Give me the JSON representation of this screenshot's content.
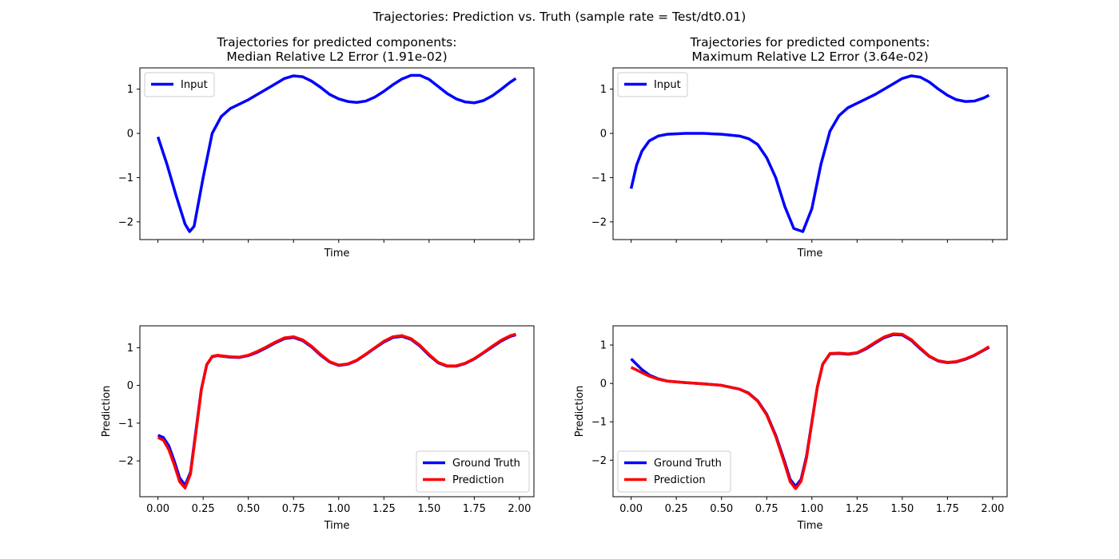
{
  "figure": {
    "suptitle": "Trajectories: Prediction vs. Truth (sample rate = Test/dt0.01)"
  },
  "colors": {
    "input": "#0000ff",
    "ground_truth": "#0000ff",
    "prediction": "#ff0000",
    "axes": "#000000"
  },
  "chart_data": [
    {
      "name": "top-left",
      "type": "line",
      "title_line1": "Trajectories for predicted components:",
      "title_line2": "Median Relative L2 Error (1.91e-02)",
      "xlabel": "Time",
      "ylabel": "",
      "xlim": [
        -0.1,
        2.08
      ],
      "ylim": [
        -2.4,
        1.48
      ],
      "xticks": [
        0,
        0.25,
        0.5,
        0.75,
        1.0,
        1.25,
        1.5,
        1.75,
        2.0
      ],
      "xtick_labels_shown": false,
      "yticks": [
        -2,
        -1,
        0,
        1
      ],
      "ytick_labels": [
        "−2",
        "−1",
        "0",
        "1"
      ],
      "legend": {
        "location": "upper-left",
        "entries": [
          "Input"
        ]
      },
      "series": [
        {
          "name": "Input",
          "color": "#0000ff",
          "x": [
            0,
            0.05,
            0.1,
            0.15,
            0.175,
            0.2,
            0.25,
            0.3,
            0.35,
            0.4,
            0.45,
            0.5,
            0.55,
            0.6,
            0.65,
            0.7,
            0.75,
            0.8,
            0.85,
            0.9,
            0.95,
            1.0,
            1.05,
            1.1,
            1.15,
            1.2,
            1.25,
            1.3,
            1.35,
            1.4,
            1.45,
            1.5,
            1.55,
            1.6,
            1.65,
            1.7,
            1.75,
            1.8,
            1.85,
            1.9,
            1.95,
            1.98
          ],
          "y": [
            -0.08,
            -0.7,
            -1.4,
            -2.05,
            -2.22,
            -2.1,
            -1.0,
            0.0,
            0.38,
            0.56,
            0.66,
            0.76,
            0.88,
            1.0,
            1.12,
            1.24,
            1.3,
            1.28,
            1.18,
            1.04,
            0.88,
            0.78,
            0.72,
            0.7,
            0.73,
            0.82,
            0.95,
            1.1,
            1.23,
            1.31,
            1.31,
            1.22,
            1.06,
            0.9,
            0.78,
            0.71,
            0.69,
            0.74,
            0.85,
            1.0,
            1.16,
            1.24
          ]
        }
      ]
    },
    {
      "name": "top-right",
      "type": "line",
      "title_line1": "Trajectories for predicted components:",
      "title_line2": "Maximum Relative L2 Error (3.64e-02)",
      "xlabel": "Time",
      "ylabel": "",
      "xlim": [
        -0.1,
        2.08
      ],
      "ylim": [
        -2.4,
        1.48
      ],
      "xticks": [
        0,
        0.25,
        0.5,
        0.75,
        1.0,
        1.25,
        1.5,
        1.75,
        2.0
      ],
      "xtick_labels_shown": false,
      "yticks": [
        -2,
        -1,
        0,
        1
      ],
      "ytick_labels": [
        "−2",
        "−1",
        "0",
        "1"
      ],
      "legend": {
        "location": "upper-left",
        "entries": [
          "Input"
        ]
      },
      "series": [
        {
          "name": "Input",
          "color": "#0000ff",
          "x": [
            0,
            0.03,
            0.06,
            0.1,
            0.15,
            0.2,
            0.3,
            0.4,
            0.5,
            0.6,
            0.65,
            0.7,
            0.75,
            0.8,
            0.85,
            0.9,
            0.95,
            1.0,
            1.05,
            1.1,
            1.15,
            1.2,
            1.25,
            1.3,
            1.35,
            1.4,
            1.45,
            1.5,
            1.55,
            1.6,
            1.65,
            1.7,
            1.75,
            1.8,
            1.85,
            1.9,
            1.95,
            1.98
          ],
          "y": [
            -1.25,
            -0.72,
            -0.4,
            -0.17,
            -0.06,
            -0.02,
            0.0,
            0.0,
            -0.02,
            -0.06,
            -0.12,
            -0.25,
            -0.55,
            -1.0,
            -1.65,
            -2.15,
            -2.22,
            -1.7,
            -0.7,
            0.05,
            0.4,
            0.58,
            0.68,
            0.78,
            0.88,
            1.0,
            1.12,
            1.24,
            1.3,
            1.27,
            1.16,
            1.0,
            0.86,
            0.76,
            0.72,
            0.73,
            0.8,
            0.86
          ]
        }
      ]
    },
    {
      "name": "bottom-left",
      "type": "line",
      "title_line1": "",
      "title_line2": "",
      "xlabel": "Time",
      "ylabel": "Prediction",
      "xlim": [
        -0.1,
        2.08
      ],
      "ylim": [
        -2.95,
        1.58
      ],
      "xticks": [
        0,
        0.25,
        0.5,
        0.75,
        1.0,
        1.25,
        1.5,
        1.75,
        2.0
      ],
      "xtick_labels": [
        "0.00",
        "0.25",
        "0.50",
        "0.75",
        "1.00",
        "1.25",
        "1.50",
        "1.75",
        "2.00"
      ],
      "xtick_labels_shown": true,
      "yticks": [
        -2,
        -1,
        0,
        1
      ],
      "ytick_labels": [
        "−2",
        "−1",
        "0",
        "1"
      ],
      "legend": {
        "location": "lower-right",
        "entries": [
          "Ground Truth",
          "Prediction"
        ]
      },
      "series": [
        {
          "name": "Ground Truth",
          "color": "#0000ff",
          "x": [
            0,
            0.03,
            0.06,
            0.09,
            0.12,
            0.15,
            0.18,
            0.21,
            0.24,
            0.27,
            0.3,
            0.33,
            0.36,
            0.4,
            0.45,
            0.5,
            0.55,
            0.6,
            0.65,
            0.7,
            0.75,
            0.8,
            0.85,
            0.9,
            0.95,
            1.0,
            1.05,
            1.1,
            1.15,
            1.2,
            1.25,
            1.3,
            1.35,
            1.4,
            1.45,
            1.5,
            1.55,
            1.6,
            1.65,
            1.7,
            1.75,
            1.8,
            1.85,
            1.9,
            1.95,
            1.98
          ],
          "y": [
            -1.32,
            -1.38,
            -1.6,
            -2.0,
            -2.45,
            -2.65,
            -2.3,
            -1.2,
            -0.1,
            0.55,
            0.76,
            0.79,
            0.77,
            0.75,
            0.74,
            0.79,
            0.88,
            1.0,
            1.13,
            1.24,
            1.27,
            1.19,
            1.02,
            0.8,
            0.62,
            0.53,
            0.56,
            0.66,
            0.82,
            0.99,
            1.15,
            1.27,
            1.3,
            1.22,
            1.04,
            0.8,
            0.6,
            0.51,
            0.51,
            0.58,
            0.7,
            0.86,
            1.02,
            1.18,
            1.3,
            1.34
          ]
        },
        {
          "name": "Prediction",
          "color": "#ff0000",
          "x": [
            0,
            0.03,
            0.06,
            0.09,
            0.12,
            0.15,
            0.18,
            0.21,
            0.24,
            0.27,
            0.3,
            0.33,
            0.36,
            0.4,
            0.45,
            0.5,
            0.55,
            0.6,
            0.65,
            0.7,
            0.75,
            0.8,
            0.85,
            0.9,
            0.95,
            1.0,
            1.05,
            1.1,
            1.15,
            1.2,
            1.25,
            1.3,
            1.35,
            1.4,
            1.45,
            1.5,
            1.55,
            1.6,
            1.65,
            1.7,
            1.75,
            1.8,
            1.85,
            1.9,
            1.95,
            1.98
          ],
          "y": [
            -1.38,
            -1.45,
            -1.7,
            -2.1,
            -2.55,
            -2.72,
            -2.35,
            -1.25,
            -0.12,
            0.55,
            0.77,
            0.8,
            0.78,
            0.76,
            0.75,
            0.8,
            0.9,
            1.02,
            1.15,
            1.26,
            1.29,
            1.21,
            1.04,
            0.82,
            0.63,
            0.54,
            0.57,
            0.67,
            0.83,
            1.0,
            1.17,
            1.29,
            1.32,
            1.24,
            1.06,
            0.82,
            0.61,
            0.52,
            0.52,
            0.59,
            0.71,
            0.87,
            1.04,
            1.2,
            1.32,
            1.36
          ]
        }
      ]
    },
    {
      "name": "bottom-right",
      "type": "line",
      "title_line1": "",
      "title_line2": "",
      "xlabel": "Time",
      "ylabel": "Prediction",
      "xlim": [
        -0.1,
        2.08
      ],
      "ylim": [
        -2.95,
        1.5
      ],
      "xticks": [
        0,
        0.25,
        0.5,
        0.75,
        1.0,
        1.25,
        1.5,
        1.75,
        2.0
      ],
      "xtick_labels": [
        "0.00",
        "0.25",
        "0.50",
        "0.75",
        "1.00",
        "1.25",
        "1.50",
        "1.75",
        "2.00"
      ],
      "xtick_labels_shown": true,
      "yticks": [
        -2,
        -1,
        0,
        1
      ],
      "ytick_labels": [
        "−2",
        "−1",
        "0",
        "1"
      ],
      "legend": {
        "location": "lower-left",
        "entries": [
          "Ground Truth",
          "Prediction"
        ]
      },
      "series": [
        {
          "name": "Ground Truth",
          "color": "#0000ff",
          "x": [
            0,
            0.03,
            0.06,
            0.1,
            0.15,
            0.2,
            0.3,
            0.4,
            0.5,
            0.6,
            0.65,
            0.7,
            0.75,
            0.8,
            0.85,
            0.88,
            0.91,
            0.94,
            0.97,
            1.0,
            1.03,
            1.06,
            1.1,
            1.15,
            1.2,
            1.25,
            1.3,
            1.35,
            1.4,
            1.45,
            1.5,
            1.55,
            1.6,
            1.65,
            1.7,
            1.75,
            1.8,
            1.85,
            1.9,
            1.95,
            1.98
          ],
          "y": [
            0.64,
            0.5,
            0.36,
            0.22,
            0.12,
            0.06,
            0.02,
            -0.01,
            -0.05,
            -0.15,
            -0.25,
            -0.45,
            -0.8,
            -1.35,
            -2.05,
            -2.5,
            -2.68,
            -2.5,
            -1.9,
            -1.0,
            -0.1,
            0.5,
            0.77,
            0.78,
            0.76,
            0.79,
            0.9,
            1.05,
            1.19,
            1.27,
            1.26,
            1.12,
            0.9,
            0.7,
            0.58,
            0.54,
            0.56,
            0.63,
            0.73,
            0.86,
            0.94
          ]
        },
        {
          "name": "Prediction",
          "color": "#ff0000",
          "x": [
            0,
            0.03,
            0.06,
            0.1,
            0.15,
            0.2,
            0.3,
            0.4,
            0.5,
            0.6,
            0.65,
            0.7,
            0.75,
            0.8,
            0.85,
            0.88,
            0.91,
            0.94,
            0.97,
            1.0,
            1.03,
            1.06,
            1.1,
            1.15,
            1.2,
            1.25,
            1.3,
            1.35,
            1.4,
            1.45,
            1.5,
            1.55,
            1.6,
            1.65,
            1.7,
            1.75,
            1.8,
            1.85,
            1.9,
            1.95,
            1.98
          ],
          "y": [
            0.42,
            0.35,
            0.28,
            0.19,
            0.11,
            0.06,
            0.02,
            -0.01,
            -0.05,
            -0.15,
            -0.26,
            -0.46,
            -0.82,
            -1.38,
            -2.1,
            -2.56,
            -2.74,
            -2.55,
            -1.95,
            -1.02,
            -0.1,
            0.5,
            0.78,
            0.79,
            0.77,
            0.8,
            0.92,
            1.07,
            1.21,
            1.29,
            1.28,
            1.14,
            0.92,
            0.71,
            0.59,
            0.55,
            0.57,
            0.64,
            0.74,
            0.87,
            0.96
          ]
        }
      ]
    }
  ]
}
